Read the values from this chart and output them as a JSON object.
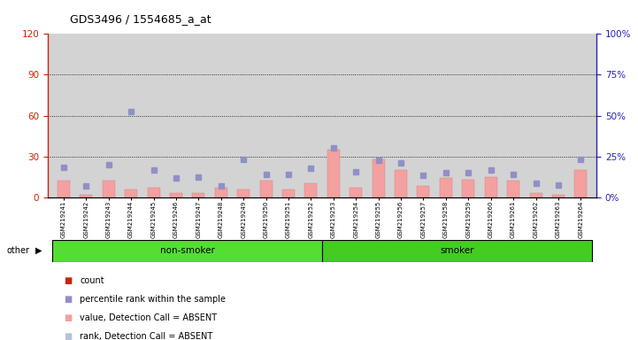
{
  "title": "GDS3496 / 1554685_a_at",
  "samples": [
    "GSM219241",
    "GSM219242",
    "GSM219243",
    "GSM219244",
    "GSM219245",
    "GSM219246",
    "GSM219247",
    "GSM219248",
    "GSM219249",
    "GSM219250",
    "GSM219251",
    "GSM219252",
    "GSM219253",
    "GSM219254",
    "GSM219255",
    "GSM219256",
    "GSM219257",
    "GSM219258",
    "GSM219259",
    "GSM219260",
    "GSM219261",
    "GSM219262",
    "GSM219263",
    "GSM219264"
  ],
  "count_values": [
    12,
    2,
    12,
    6,
    7,
    3,
    3,
    7,
    6,
    12,
    6,
    10,
    35,
    7,
    28,
    20,
    8,
    14,
    13,
    15,
    12,
    3,
    2,
    20
  ],
  "rank_values": [
    22,
    8,
    24,
    63,
    20,
    14,
    15,
    8,
    28,
    17,
    17,
    21,
    36,
    19,
    27,
    25,
    16,
    18,
    18,
    20,
    17,
    10,
    9,
    28
  ],
  "non_smoker_count": 12,
  "left_ylim": [
    0,
    120
  ],
  "right_ylim": [
    0,
    100
  ],
  "left_yticks": [
    0,
    30,
    60,
    90,
    120
  ],
  "right_yticks": [
    0,
    25,
    50,
    75,
    100
  ],
  "grid_values": [
    30,
    60,
    90
  ],
  "bg_color": "#d3d3d3",
  "bar_color": "#f4a0a0",
  "dot_color": "#9090c8",
  "non_smoker_color": "#55dd33",
  "smoker_color": "#44cc22",
  "left_axis_color": "#cc2200",
  "right_axis_color": "#2222bb",
  "title_color": "#000000"
}
